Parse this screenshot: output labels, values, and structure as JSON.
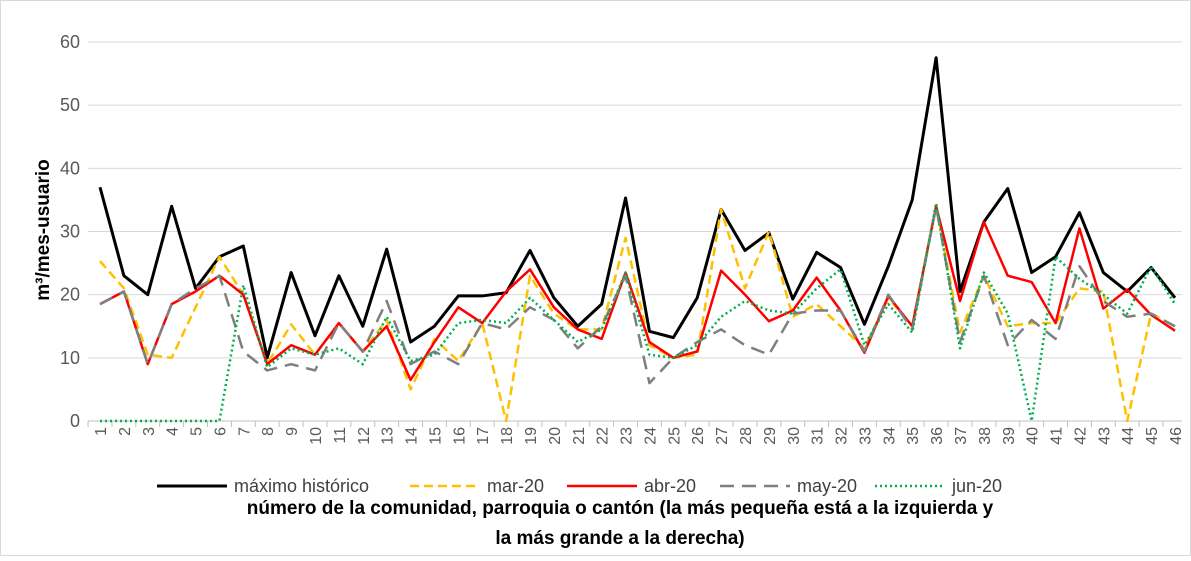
{
  "chart_data": {
    "type": "line",
    "ylabel": "m³/mes-usuario",
    "xlabel": [
      "número de la comunidad, parroquia o cantón (la más pequeña está a la izquierda y",
      "la más grande a la derecha)"
    ],
    "categories": [
      "1",
      "2",
      "3",
      "4",
      "5",
      "6",
      "7",
      "8",
      "9",
      "10",
      "11",
      "12",
      "13",
      "14",
      "15",
      "16",
      "17",
      "18",
      "19",
      "20",
      "21",
      "22",
      "23",
      "24",
      "25",
      "26",
      "27",
      "28",
      "29",
      "30",
      "31",
      "32",
      "33",
      "34",
      "35",
      "36",
      "37",
      "38",
      "39",
      "40",
      "41",
      "42",
      "43",
      "44",
      "45",
      "46"
    ],
    "ylim": [
      0,
      60
    ],
    "yticks": [
      0,
      10,
      20,
      30,
      40,
      50,
      60
    ],
    "grid": true,
    "legend": "bottom",
    "series": [
      {
        "name": "máximo histórico",
        "color": "#000000",
        "dash": "solid",
        "width": 3,
        "values": [
          37,
          23,
          20,
          34,
          21,
          26,
          27.7,
          10,
          23.5,
          13.5,
          23,
          15,
          27.2,
          12.5,
          15,
          19.8,
          19.8,
          20.3,
          27,
          19.5,
          15,
          18.5,
          35.3,
          14.2,
          13.2,
          19.5,
          33.5,
          27,
          29.8,
          19.3,
          26.7,
          24.3,
          15.3,
          24.5,
          35,
          57.5,
          20.5,
          31.5,
          36.8,
          23.5,
          26,
          33,
          23.5,
          20.5,
          24.3,
          19.5
        ]
      },
      {
        "name": "mar-20",
        "color": "#ffc000",
        "dash": "dashed",
        "width": 2.5,
        "values": [
          25.3,
          21,
          10.5,
          10,
          18,
          26,
          20,
          9,
          15.3,
          10.5,
          15.5,
          11,
          16,
          5,
          13,
          9.5,
          15.5,
          0,
          23,
          17,
          14.5,
          14.5,
          29,
          12,
          10,
          10.5,
          33.5,
          21,
          30,
          16.5,
          18.5,
          15,
          11.5,
          19.5,
          15,
          34,
          14,
          23,
          15,
          15.5,
          15.5,
          21,
          20.5,
          0,
          17,
          15
        ]
      },
      {
        "name": "abr-20",
        "color": "#ff0000",
        "dash": "solid",
        "width": 2.5,
        "values": [
          18.5,
          20.5,
          9,
          18.5,
          20.5,
          23,
          20,
          9,
          12,
          10.5,
          15.5,
          11,
          15,
          6.5,
          12.5,
          18,
          15.5,
          20.5,
          24,
          18,
          14.5,
          13,
          23.5,
          12.5,
          10,
          11,
          23.8,
          20,
          15.8,
          17.5,
          22.7,
          17.5,
          10.8,
          19.8,
          15,
          34,
          19,
          31.5,
          23,
          22,
          15.5,
          30.5,
          17.8,
          20.8,
          16.8,
          14.3
        ]
      },
      {
        "name": "may-20",
        "color": "#7f7f7f",
        "dash": "longdash",
        "width": 2.5,
        "values": [
          18.5,
          20.5,
          9,
          18.5,
          21,
          23,
          11,
          8,
          9,
          8,
          15.5,
          11,
          19,
          9,
          11,
          9,
          15.5,
          14.5,
          18,
          16,
          11.5,
          15,
          23,
          6,
          10,
          12.5,
          14.5,
          12,
          10.5,
          17,
          17.5,
          17.5,
          11,
          20,
          14.5,
          34,
          12.5,
          23,
          12,
          16,
          13,
          24.5,
          19,
          16.5,
          17,
          15
        ]
      },
      {
        "name": "jun-20",
        "color": "#00b050",
        "dash": "dotted",
        "width": 2.5,
        "values": [
          0,
          0,
          0,
          0,
          0,
          0,
          21.5,
          8.5,
          11.5,
          10.5,
          11.5,
          9,
          16.5,
          9.5,
          10.5,
          15.5,
          16,
          15.5,
          19.5,
          16,
          12.5,
          14.5,
          23.5,
          10.5,
          10,
          12,
          16.5,
          19,
          17.5,
          17,
          21,
          24,
          12,
          18.5,
          14,
          34.5,
          11.5,
          23.5,
          17,
          0,
          26,
          22.5,
          20,
          17,
          24.5,
          18.5
        ]
      }
    ]
  }
}
